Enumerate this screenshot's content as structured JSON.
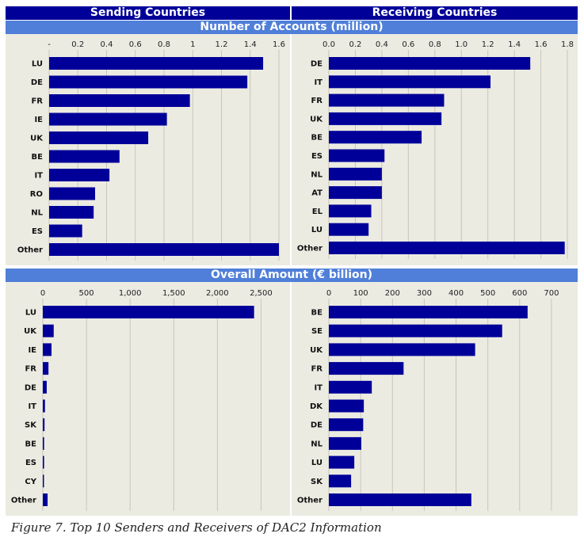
{
  "headers": {
    "sending": "Sending Countries",
    "receiving": "Receiving Countries",
    "accounts": "Number of Accounts (million)",
    "amount": "Overall Amount (€ billion)"
  },
  "caption": "Figure 7. Top 10 Senders and Receivers of DAC2 Information",
  "colors": {
    "bar": "#000099",
    "panel": "#ecebe2",
    "grid": "#c8c6b8",
    "header": "#000099",
    "subheader": "#4f7fd8"
  },
  "chart_data": [
    {
      "type": "bar",
      "orientation": "horizontal",
      "group": "Sending Countries",
      "xlabel": "Number of Accounts (million)",
      "xlim": [
        0,
        1.6
      ],
      "ticks": [
        0,
        0.2,
        0.4,
        0.6,
        0.8,
        1.0,
        1.2,
        1.4,
        1.6
      ],
      "tick_labels": [
        "-",
        "0.2",
        "0.4",
        "0.6",
        "0.8",
        "1",
        "1.2",
        "1.4",
        "1.6"
      ],
      "categories": [
        "LU",
        "DE",
        "FR",
        "IE",
        "UK",
        "BE",
        "IT",
        "RO",
        "NL",
        "ES",
        "Other"
      ],
      "values": [
        1.49,
        1.38,
        0.98,
        0.82,
        0.69,
        0.49,
        0.42,
        0.32,
        0.31,
        0.23,
        1.6
      ]
    },
    {
      "type": "bar",
      "orientation": "horizontal",
      "group": "Receiving Countries",
      "xlabel": "Number of Accounts (million)",
      "xlim": [
        0,
        1.8
      ],
      "ticks": [
        0,
        0.2,
        0.4,
        0.6,
        0.8,
        1.0,
        1.2,
        1.4,
        1.6,
        1.8
      ],
      "tick_labels": [
        "0.0",
        "0.2",
        "0.4",
        "0.6",
        "0.8",
        "1.0",
        "1.2",
        "1.4",
        "1.6",
        "1.8"
      ],
      "categories": [
        "DE",
        "IT",
        "FR",
        "UK",
        "BE",
        "ES",
        "NL",
        "AT",
        "EL",
        "LU",
        "Other"
      ],
      "values": [
        1.52,
        1.22,
        0.87,
        0.85,
        0.7,
        0.42,
        0.4,
        0.4,
        0.32,
        0.3,
        1.78
      ]
    },
    {
      "type": "bar",
      "orientation": "horizontal",
      "group": "Sending Countries",
      "xlabel": "Overall Amount (€ billion)",
      "xlim": [
        0,
        2750
      ],
      "ticks": [
        0,
        500,
        1000,
        1500,
        2000,
        2500
      ],
      "tick_labels": [
        "0",
        "500",
        "1,000",
        "1,500",
        "2,000",
        "2,500"
      ],
      "categories": [
        "LU",
        "UK",
        "IE",
        "FR",
        "DE",
        "IT",
        "SK",
        "BE",
        "ES",
        "CY",
        "Other"
      ],
      "values": [
        2420,
        125,
        100,
        65,
        45,
        25,
        20,
        15,
        15,
        12,
        55
      ]
    },
    {
      "type": "bar",
      "orientation": "horizontal",
      "group": "Receiving Countries",
      "xlabel": "Overall Amount (€ billion)",
      "xlim": [
        0,
        750
      ],
      "ticks": [
        0,
        100,
        200,
        300,
        400,
        500,
        600,
        700
      ],
      "tick_labels": [
        "0",
        "100",
        "200",
        "300",
        "400",
        "500",
        "600",
        "700"
      ],
      "categories": [
        "BE",
        "SE",
        "UK",
        "FR",
        "IT",
        "DK",
        "DE",
        "NL",
        "LU",
        "SK",
        "Other"
      ],
      "values": [
        625,
        545,
        460,
        235,
        135,
        110,
        108,
        102,
        80,
        70,
        448
      ]
    }
  ]
}
